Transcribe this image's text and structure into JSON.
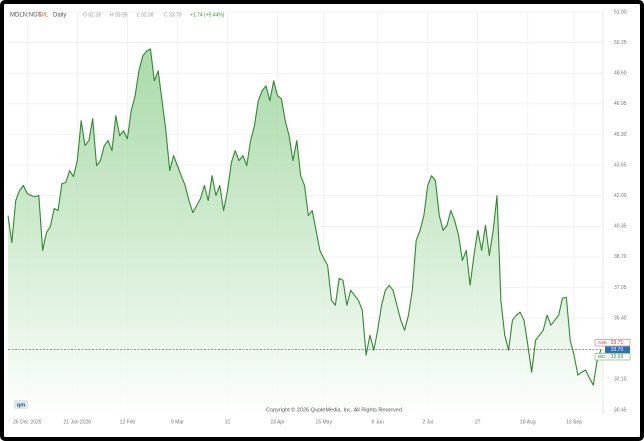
{
  "chart_data": {
    "type": "area",
    "header": {
      "symbol": "MDLN:NGS",
      "exchange": "DIL",
      "interval": "Daily",
      "open": "O 32.33",
      "high": "H 33.95",
      "low": "L 32.38",
      "close": "C 33.70",
      "change": "+1.74 (+5.44%)"
    },
    "copyright": "Copyright © 2026 QuoteMedia, Inc. All Rights Reserved",
    "logo": "qm",
    "color": "#2f8a2f",
    "values": [
      40.93,
      39.48,
      41.74,
      42.28,
      42.55,
      42.12,
      42.01,
      41.95,
      42.01,
      39.05,
      40.02,
      40.34,
      41.31,
      41.2,
      42.65,
      42.71,
      43.35,
      43.03,
      43.89,
      46.04,
      44.7,
      44.97,
      46.15,
      43.62,
      43.89,
      44.7,
      44.97,
      44.43,
      46.31,
      45.23,
      45.5,
      45.07,
      46.58,
      47.38,
      48.73,
      49.53,
      49.8,
      49.91,
      48.19,
      48.73,
      47.12,
      45.5,
      43.35,
      44.16,
      43.62,
      43.08,
      42.55,
      41.74,
      41.09,
      41.47,
      41.85,
      42.55,
      41.74,
      43.08,
      42.01,
      42.55,
      41.2,
      42.28,
      43.78,
      44.43,
      43.89,
      44.16,
      43.62,
      44.97,
      45.77,
      47.12,
      47.65,
      47.92,
      47.12,
      48.19,
      47.38,
      47.22,
      46.04,
      45.23,
      43.89,
      44.97,
      43.08,
      42.55,
      40.93,
      41.2,
      40.13,
      39.05,
      38.62,
      38.25,
      36.36,
      36.09,
      37.55,
      37.44,
      36.09,
      36.9,
      36.63,
      36.36,
      35.83,
      33.41,
      34.48,
      33.68,
      34.75,
      36.09,
      36.9,
      37.17,
      36.9,
      36.09,
      35.29,
      34.75,
      35.56,
      36.9,
      39.59,
      40.13,
      40.93,
      42.55,
      43.08,
      42.81,
      40.93,
      40.13,
      40.4,
      41.2,
      40.66,
      39.86,
      38.51,
      39.05,
      37.17,
      38.78,
      40.13,
      39.05,
      40.4,
      38.78,
      40.13,
      42.01,
      36.36,
      34.48,
      33.68,
      35.29,
      35.56,
      35.72,
      35.29,
      33.94,
      32.49,
      34.21,
      34.48,
      34.75,
      35.56,
      35.02,
      35.29,
      35.56,
      36.47,
      36.52,
      34.21,
      33.41,
      32.33,
      32.49,
      32.6,
      32.17,
      31.79,
      33.14,
      33.7
    ],
    "xlim": [
      0,
      154
    ],
    "xticks": [
      {
        "value": 5,
        "label": "26 Dec 2025"
      },
      {
        "value": 18,
        "label": "21 Jan 2026"
      },
      {
        "value": 31,
        "label": "12 Feb"
      },
      {
        "value": 44,
        "label": "9 Mar"
      },
      {
        "value": 57,
        "label": "31"
      },
      {
        "value": 70,
        "label": "23 Apr"
      },
      {
        "value": 82,
        "label": "15 May"
      },
      {
        "value": 96,
        "label": "6 Jun"
      },
      {
        "value": 109,
        "label": "2 Jul"
      },
      {
        "value": 122,
        "label": "27"
      },
      {
        "value": 135,
        "label": "18 Aug"
      },
      {
        "value": 147,
        "label": "10 Sep"
      }
    ],
    "ylim": [
      30.18,
      51.9
    ],
    "yticks": [
      {
        "value": 51.9,
        "label": "51.90"
      },
      50.25,
      {
        "value": 48.6,
        "label": "48.60"
      },
      46.95,
      {
        "value": 45.3,
        "label": "45.30"
      },
      43.65,
      {
        "value": 42,
        "label": "42.00"
      },
      40.35,
      {
        "value": 38.7,
        "label": "38.70"
      },
      37.05,
      {
        "value": 35.4,
        "label": "35.40"
      },
      {
        "value": 32.1,
        "label": "32.10"
      },
      30.45
    ],
    "grid": true,
    "quote": {
      "ask_label": "ASK",
      "ask": 33.71,
      "last": {
        "value": 33.7,
        "label": "33.70"
      },
      "bid_label": "BID",
      "bid": 32.69
    }
  }
}
